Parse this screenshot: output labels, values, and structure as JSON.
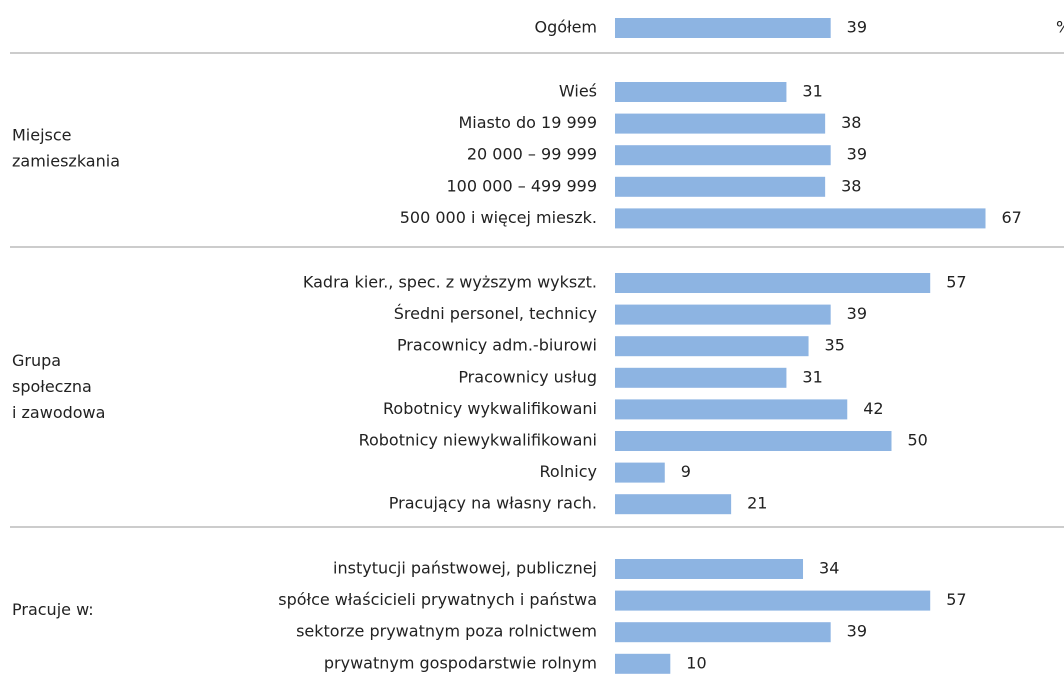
{
  "chart_data": {
    "type": "bar",
    "unit": "%",
    "color": "#8db4e2",
    "groups": [
      {
        "categories": [
          "Ogółem"
        ],
        "values": [
          39
        ]
      },
      {
        "label": [
          "Miejsce",
          "zamieszkania"
        ],
        "categories": [
          "Wieś",
          "Miasto do 19 999",
          "20 000 – 99 999",
          "100 000 – 499 999",
          "500 000 i więcej mieszk."
        ],
        "values": [
          31,
          38,
          39,
          38,
          67
        ]
      },
      {
        "label": [
          "Grupa",
          "społeczna",
          "i zawodowa"
        ],
        "categories": [
          "Kadra kier., spec. z wyższym wykszt.",
          "Średni personel, technicy",
          "Pracownicy adm.-biurowi",
          "Pracownicy usług",
          "Robotnicy wykwalifikowani",
          "Robotnicy niewykwalifikowani",
          "Rolnicy",
          "Pracujący na własny rach."
        ],
        "values": [
          57,
          39,
          35,
          31,
          42,
          50,
          9,
          21
        ]
      },
      {
        "label": [
          "Pracuje w:"
        ],
        "categories": [
          "instytucji państwowej, publicznej",
          "spółce właścicieli prywatnych i państwa",
          "sektorze prywatnym poza rolnictwem",
          "prywatnym gospodarstwie rolnym"
        ],
        "values": [
          34,
          57,
          39,
          10
        ]
      }
    ]
  }
}
